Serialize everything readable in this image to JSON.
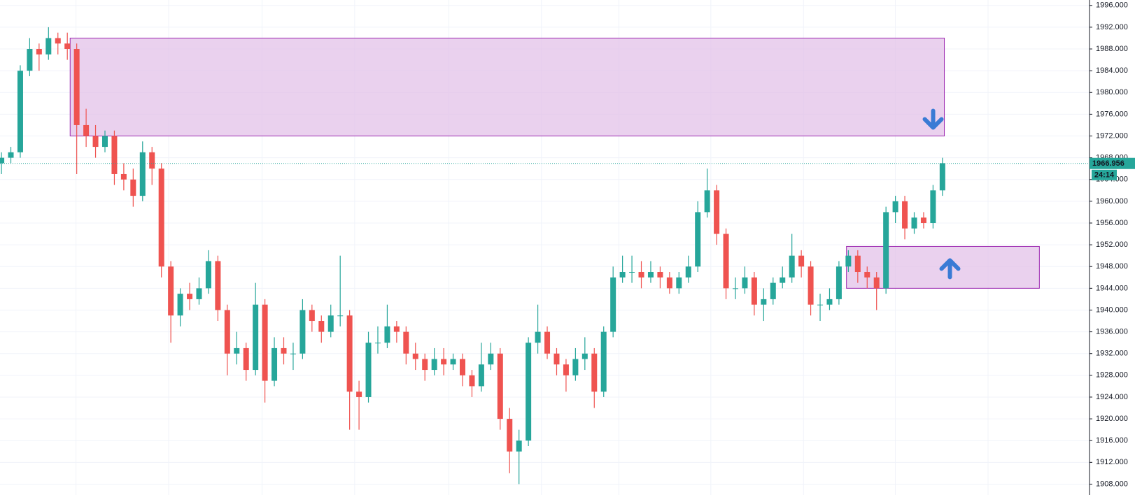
{
  "chart_data": {
    "type": "candlestick",
    "up_color": "#26a69a",
    "down_color": "#ef5350",
    "grid": true,
    "ylim": [
      1906,
      1997
    ],
    "yticks": [
      {
        "value": 1908,
        "label": "1908.000"
      },
      {
        "value": 1912,
        "label": "1912.000"
      },
      {
        "value": 1916,
        "label": "1916.000"
      },
      {
        "value": 1920,
        "label": "1920.000"
      },
      {
        "value": 1924,
        "label": "1924.000"
      },
      {
        "value": 1928,
        "label": "1928.000"
      },
      {
        "value": 1932,
        "label": "1932.000"
      },
      {
        "value": 1936,
        "label": "1936.000"
      },
      {
        "value": 1940,
        "label": "1940.000"
      },
      {
        "value": 1944,
        "label": "1944.000"
      },
      {
        "value": 1948,
        "label": "1948.000"
      },
      {
        "value": 1952,
        "label": "1952.000"
      },
      {
        "value": 1956,
        "label": "1956.000"
      },
      {
        "value": 1960,
        "label": "1960.000"
      },
      {
        "value": 1964,
        "label": "1964.000"
      },
      {
        "value": 1968,
        "label": "1968.000"
      },
      {
        "value": 1972,
        "label": "1972.000"
      },
      {
        "value": 1976,
        "label": "1976.000"
      },
      {
        "value": 1980,
        "label": "1980.000"
      },
      {
        "value": 1984,
        "label": "1984.000"
      },
      {
        "value": 1988,
        "label": "1988.000"
      },
      {
        "value": 1992,
        "label": "1992.000"
      },
      {
        "value": 1996,
        "label": "1996.000"
      }
    ],
    "ohlc": [
      [
        1967,
        1969,
        1965,
        1968
      ],
      [
        1968,
        1970,
        1967,
        1969
      ],
      [
        1969,
        1985,
        1968,
        1984
      ],
      [
        1984,
        1990,
        1983,
        1988
      ],
      [
        1988,
        1989,
        1984,
        1987
      ],
      [
        1987,
        1992,
        1986,
        1990
      ],
      [
        1990,
        1991,
        1987,
        1989
      ],
      [
        1989,
        1991,
        1986,
        1988
      ],
      [
        1988,
        1989,
        1965,
        1974
      ],
      [
        1974,
        1977,
        1970,
        1972
      ],
      [
        1972,
        1974,
        1968,
        1970
      ],
      [
        1970,
        1973,
        1969,
        1972
      ],
      [
        1972,
        1973,
        1963,
        1965
      ],
      [
        1965,
        1967,
        1962,
        1964
      ],
      [
        1964,
        1966,
        1959,
        1961
      ],
      [
        1961,
        1971,
        1960,
        1969
      ],
      [
        1969,
        1970,
        1963,
        1966
      ],
      [
        1966,
        1967,
        1946,
        1948
      ],
      [
        1948,
        1949,
        1934,
        1939
      ],
      [
        1939,
        1944,
        1937,
        1943
      ],
      [
        1943,
        1945,
        1940,
        1942
      ],
      [
        1942,
        1946,
        1941,
        1944
      ],
      [
        1944,
        1951,
        1943,
        1949
      ],
      [
        1949,
        1950,
        1938,
        1940
      ],
      [
        1940,
        1941,
        1928,
        1932
      ],
      [
        1932,
        1936,
        1930,
        1933
      ],
      [
        1933,
        1934,
        1927,
        1929
      ],
      [
        1929,
        1945,
        1928,
        1941
      ],
      [
        1941,
        1942,
        1923,
        1927
      ],
      [
        1927,
        1935,
        1926,
        1933
      ],
      [
        1933,
        1935,
        1930,
        1932
      ],
      [
        1932,
        1934,
        1929,
        1932
      ],
      [
        1932,
        1942,
        1931,
        1940
      ],
      [
        1940,
        1941,
        1936,
        1938
      ],
      [
        1938,
        1939,
        1934,
        1936
      ],
      [
        1936,
        1941,
        1935,
        1939
      ],
      [
        1939,
        1950,
        1937,
        1939
      ],
      [
        1939,
        1940,
        1918,
        1925
      ],
      [
        1925,
        1927,
        1918,
        1924
      ],
      [
        1924,
        1936,
        1923,
        1934
      ],
      [
        1934,
        1937,
        1932,
        1934
      ],
      [
        1934,
        1941,
        1933,
        1937
      ],
      [
        1937,
        1938,
        1934,
        1936
      ],
      [
        1936,
        1937,
        1930,
        1932
      ],
      [
        1932,
        1934,
        1929,
        1931
      ],
      [
        1931,
        1932,
        1927,
        1929
      ],
      [
        1929,
        1933,
        1928,
        1931
      ],
      [
        1931,
        1933,
        1928,
        1930
      ],
      [
        1930,
        1932,
        1929,
        1931
      ],
      [
        1931,
        1932,
        1926,
        1928
      ],
      [
        1928,
        1929,
        1924,
        1926
      ],
      [
        1926,
        1934,
        1925,
        1930
      ],
      [
        1930,
        1934,
        1929,
        1932
      ],
      [
        1932,
        1933,
        1918,
        1920
      ],
      [
        1920,
        1922,
        1910,
        1914
      ],
      [
        1914,
        1918,
        1908,
        1916
      ],
      [
        1916,
        1935,
        1915,
        1934
      ],
      [
        1934,
        1941,
        1932,
        1936
      ],
      [
        1936,
        1937,
        1931,
        1932
      ],
      [
        1932,
        1933,
        1928,
        1930
      ],
      [
        1930,
        1931,
        1925,
        1928
      ],
      [
        1928,
        1933,
        1927,
        1931
      ],
      [
        1931,
        1935,
        1929,
        1932
      ],
      [
        1932,
        1933,
        1922,
        1925
      ],
      [
        1925,
        1937,
        1924,
        1936
      ],
      [
        1936,
        1948,
        1935,
        1946
      ],
      [
        1946,
        1950,
        1945,
        1947
      ],
      [
        1947,
        1950,
        1945,
        1947
      ],
      [
        1947,
        1949,
        1944,
        1946
      ],
      [
        1946,
        1949,
        1945,
        1947
      ],
      [
        1947,
        1948,
        1944,
        1946
      ],
      [
        1946,
        1947,
        1943,
        1944
      ],
      [
        1944,
        1947,
        1943,
        1946
      ],
      [
        1946,
        1950,
        1945,
        1948
      ],
      [
        1948,
        1960,
        1947,
        1958
      ],
      [
        1958,
        1966,
        1957,
        1962
      ],
      [
        1962,
        1963,
        1952,
        1954
      ],
      [
        1954,
        1955,
        1942,
        1944
      ],
      [
        1944,
        1946,
        1942,
        1944
      ],
      [
        1944,
        1948,
        1943,
        1946
      ],
      [
        1946,
        1947,
        1939,
        1941
      ],
      [
        1941,
        1944,
        1938,
        1942
      ],
      [
        1942,
        1946,
        1941,
        1945
      ],
      [
        1945,
        1948,
        1944,
        1946
      ],
      [
        1946,
        1954,
        1945,
        1950
      ],
      [
        1950,
        1951,
        1946,
        1948
      ],
      [
        1948,
        1949,
        1939,
        1941
      ],
      [
        1941,
        1943,
        1938,
        1941
      ],
      [
        1941,
        1944,
        1940,
        1942
      ],
      [
        1942,
        1949,
        1941,
        1948
      ],
      [
        1948,
        1951,
        1947,
        1950
      ],
      [
        1950,
        1951,
        1945,
        1947
      ],
      [
        1947,
        1948,
        1944,
        1946
      ],
      [
        1946,
        1947,
        1940,
        1944
      ],
      [
        1944,
        1959,
        1943,
        1958
      ],
      [
        1958,
        1961,
        1956,
        1960
      ],
      [
        1960,
        1961,
        1953,
        1955
      ],
      [
        1955,
        1958,
        1954,
        1957
      ],
      [
        1957,
        1958,
        1955,
        1956
      ],
      [
        1956,
        1963,
        1955,
        1962
      ],
      [
        1962,
        1968,
        1961,
        1967
      ]
    ],
    "zones": [
      {
        "high": 1990,
        "low": 1972,
        "xrange": [
          7.3,
          100.2
        ],
        "direction": "down",
        "color": "#e1bee7",
        "border": "#9c27b0"
      },
      {
        "high": 1951.7,
        "low": 1944,
        "xrange": [
          89.8,
          110.3
        ],
        "direction": "up",
        "color": "#e1bee7",
        "border": "#9c27b0"
      }
    ],
    "arrow_color": "#3a7bd5",
    "last_price": 1966.956,
    "countdown": "24:14",
    "label_color": "#26a69a"
  }
}
